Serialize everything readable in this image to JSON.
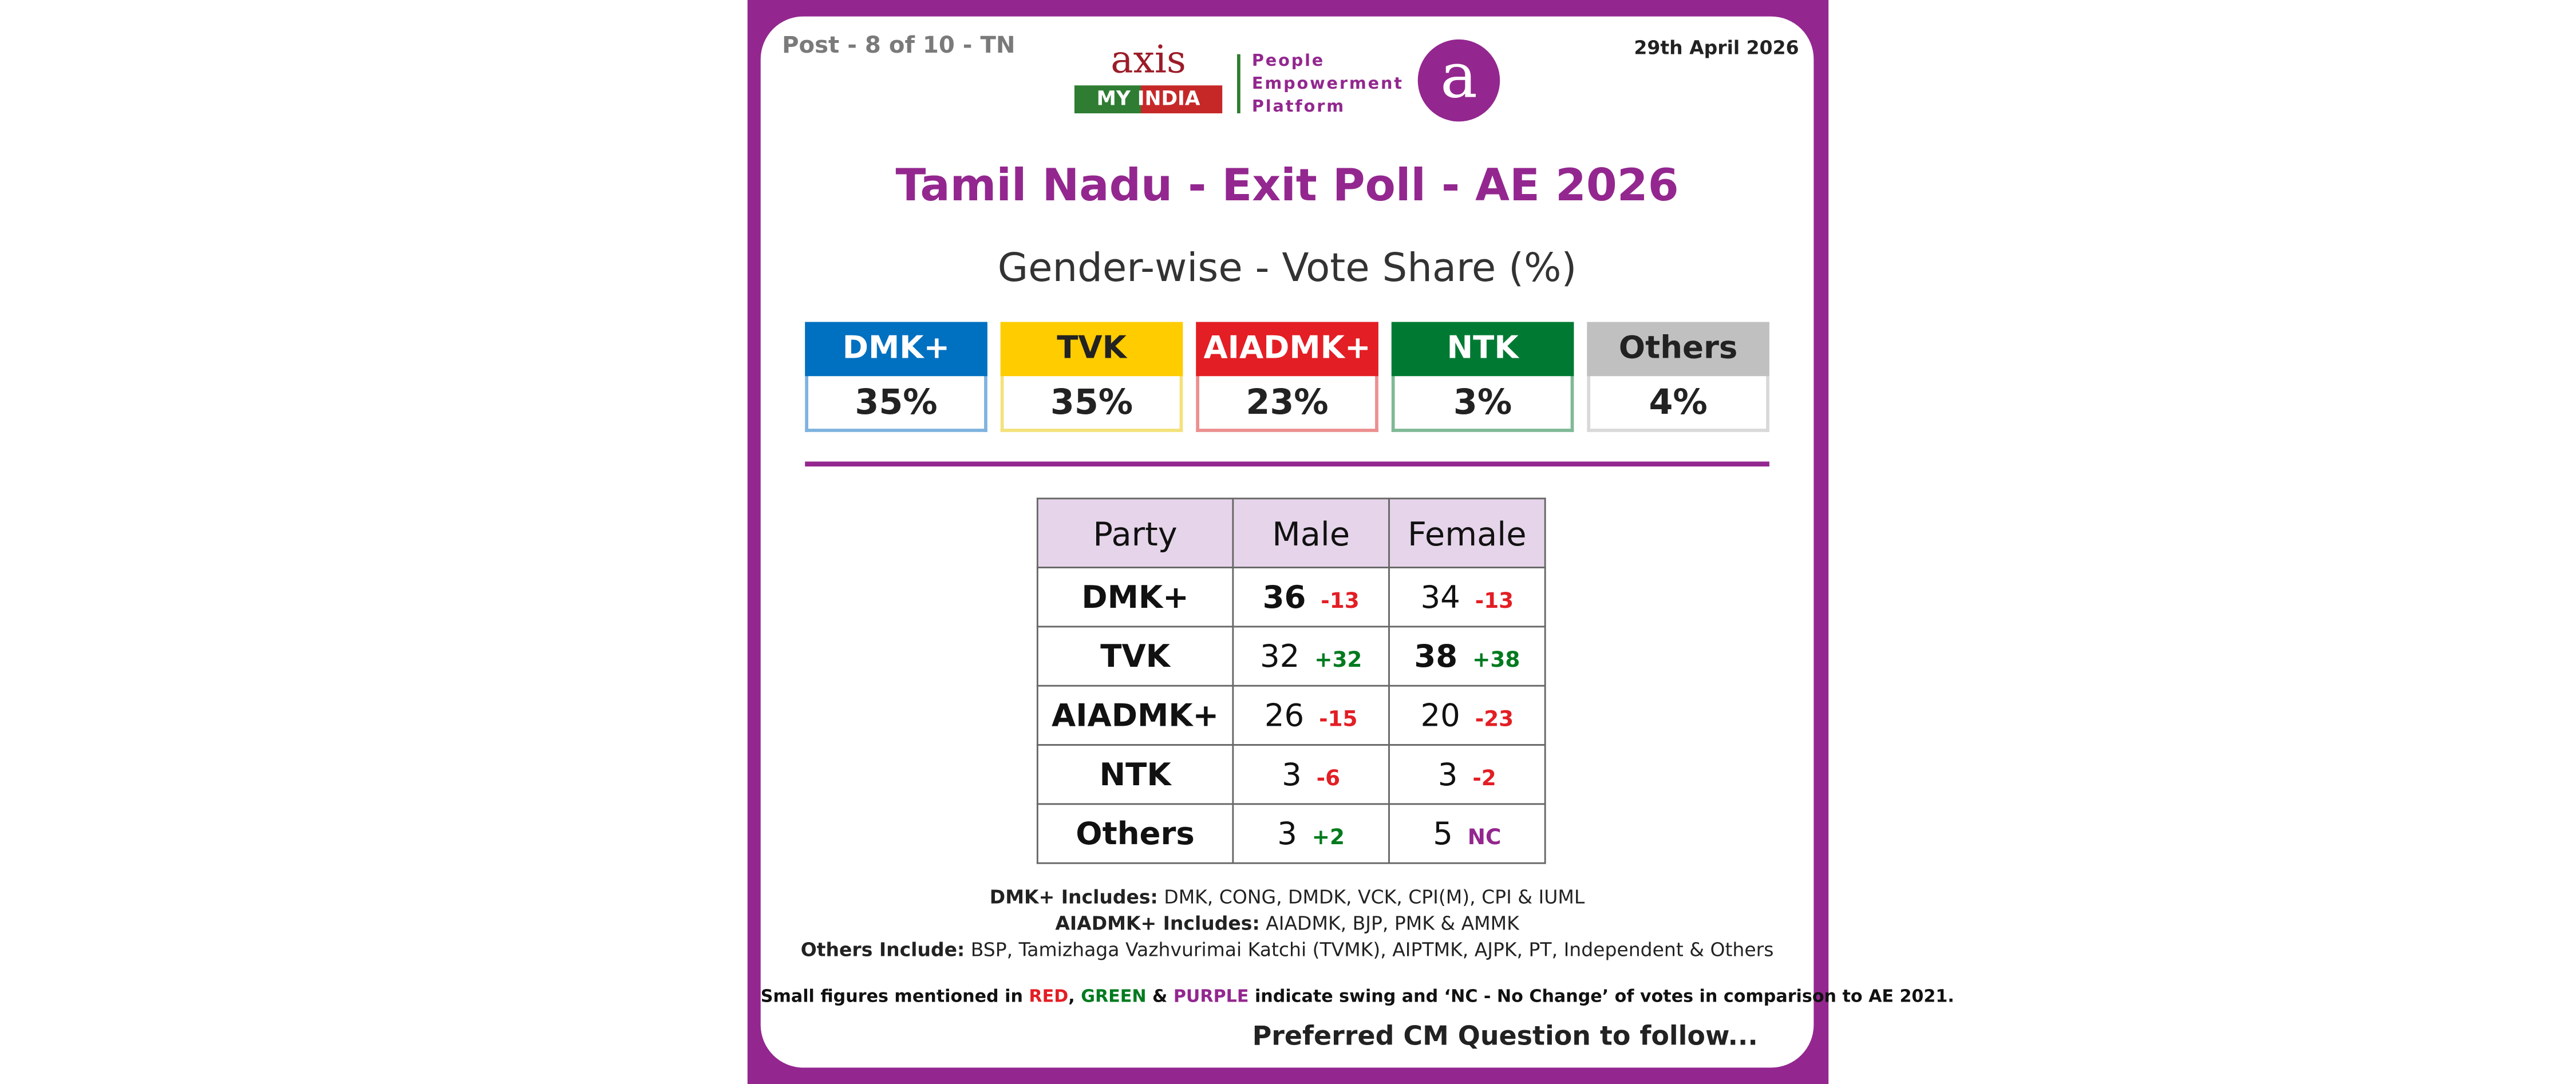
{
  "header": {
    "post": "Post - 8 of 10 - TN",
    "date": "29th April 2026",
    "logo": {
      "brand": "axis",
      "sub_brand": "MY INDIA",
      "tagline": [
        "People",
        "Empowerment",
        "Platform"
      ],
      "icon": "a"
    }
  },
  "title": "Tamil Nadu - Exit Poll - AE 2026",
  "subtitle": "Gender-wise - Vote Share (%)",
  "summary": [
    {
      "party": "DMK+",
      "share": "35%",
      "color": "#0070c0",
      "border": "#7fb3df",
      "text_color": "#ffffff"
    },
    {
      "party": "TVK",
      "share": "35%",
      "color": "#ffcc00",
      "border": "#f3e27c",
      "text_color": "#222222"
    },
    {
      "party": "AIADMK+",
      "share": "23%",
      "color": "#e31e24",
      "border": "#ec8f90",
      "text_color": "#ffffff"
    },
    {
      "party": "NTK",
      "share": "3%",
      "color": "#007a33",
      "border": "#80b996",
      "text_color": "#ffffff"
    },
    {
      "party": "Others",
      "share": "4%",
      "color": "#c0c0c0",
      "border": "#d9d9d9",
      "text_color": "#222222"
    }
  ],
  "table": {
    "headers": [
      "Party",
      "Male",
      "Female"
    ],
    "rows": [
      {
        "party": "DMK+",
        "male": {
          "value": "36",
          "swing": "-13",
          "bold": true
        },
        "female": {
          "value": "34",
          "swing": "-13",
          "bold": false
        }
      },
      {
        "party": "TVK",
        "male": {
          "value": "32",
          "swing": "+32",
          "bold": false
        },
        "female": {
          "value": "38",
          "swing": "+38",
          "bold": true
        }
      },
      {
        "party": "AIADMK+",
        "male": {
          "value": "26",
          "swing": "-15",
          "bold": false
        },
        "female": {
          "value": "20",
          "swing": "-23",
          "bold": false
        }
      },
      {
        "party": "NTK",
        "male": {
          "value": "3",
          "swing": "-6",
          "bold": false
        },
        "female": {
          "value": "3",
          "swing": "-2",
          "bold": false
        }
      },
      {
        "party": "Others",
        "male": {
          "value": "3",
          "swing": "+2",
          "bold": false
        },
        "female": {
          "value": "5",
          "swing": "NC",
          "bold": false
        }
      }
    ]
  },
  "notes": [
    {
      "label": "DMK+ Includes:",
      "text": " DMK, CONG, DMDK, VCK, CPI(M), CPI & IUML"
    },
    {
      "label": "AIADMK+ Includes:",
      "text": " AIADMK, BJP, PMK & AMMK"
    },
    {
      "label": "Others Include:",
      "text": " BSP, Tamizhaga Vazhvurimai Katchi (TVMK), AIPTMK, AJPK, PT, Independent & Others"
    }
  ],
  "legend_note": [
    "Small figures mentioned in ",
    "RED",
    ", ",
    "GREEN",
    " & ",
    "PURPLE",
    " indicate swing and ‘NC - No Change’ of votes in comparison to AE 2021."
  ],
  "footer": "Preferred CM Question to follow..."
}
